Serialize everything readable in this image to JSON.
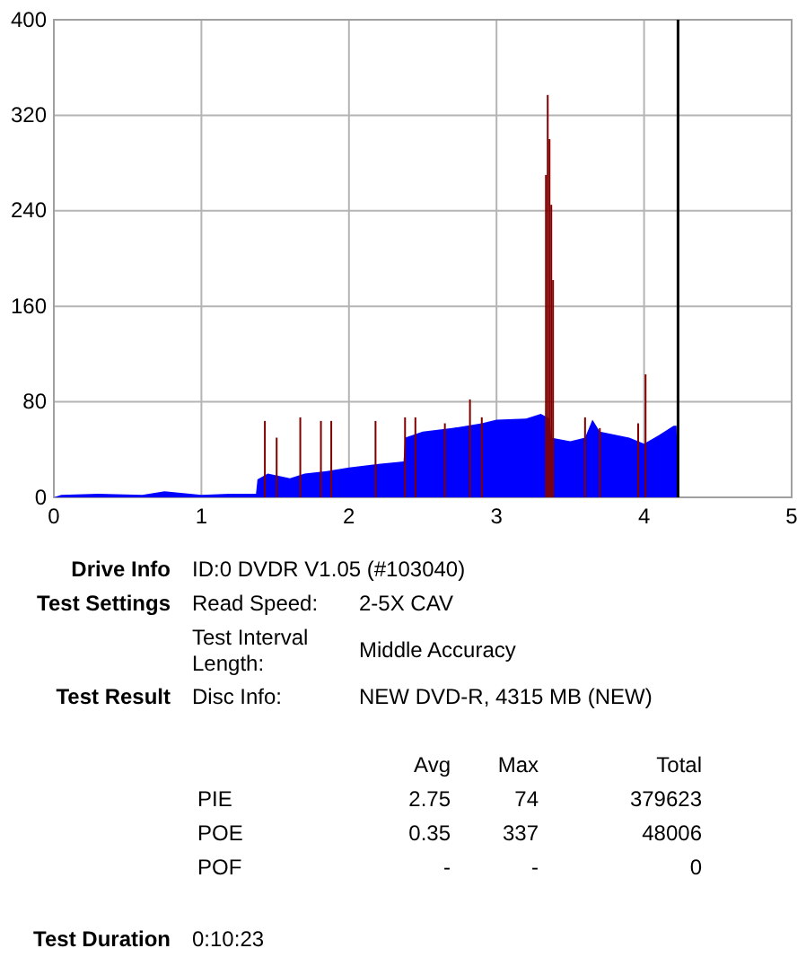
{
  "chart_data": {
    "type": "area",
    "xlim": [
      0,
      5
    ],
    "xticks": [
      0,
      1,
      2,
      3,
      4,
      5
    ],
    "ylim": [
      0,
      400
    ],
    "yticks": [
      0,
      80,
      160,
      240,
      320,
      400
    ],
    "grid": true,
    "series": [
      {
        "color": "#0000ff",
        "x": [
          0,
          0.05,
          0.3,
          0.6,
          0.75,
          1.0,
          1.2,
          1.37,
          1.38,
          1.45,
          1.6,
          1.7,
          1.85,
          2.0,
          2.2,
          2.37,
          2.38,
          2.5,
          2.7,
          2.9,
          3.0,
          3.2,
          3.3,
          3.36,
          3.37,
          3.5,
          3.6,
          3.65,
          3.7,
          3.9,
          4.0,
          4.1,
          4.2,
          4.22,
          4.23
        ],
        "values": [
          0,
          2,
          3,
          2,
          5,
          2,
          3,
          3,
          15,
          20,
          16,
          20,
          22,
          25,
          28,
          30,
          50,
          55,
          58,
          62,
          65,
          66,
          70,
          66,
          50,
          47,
          50,
          65,
          55,
          50,
          45,
          52,
          60,
          60,
          0
        ]
      },
      {
        "type": "bar",
        "color": "#800000",
        "x": [
          1.43,
          1.51,
          1.67,
          1.81,
          1.88,
          2.18,
          2.38,
          2.45,
          2.65,
          2.82,
          2.9,
          3.335,
          3.347,
          3.359,
          3.371,
          3.383,
          3.6,
          3.7,
          3.96,
          4.01
        ],
        "values": [
          64,
          50,
          67,
          64,
          64,
          64,
          67,
          67,
          62,
          82,
          67,
          270,
          337,
          300,
          245,
          182,
          67,
          58,
          62,
          103
        ]
      }
    ],
    "ref_lines": [
      {
        "axis": "x",
        "value": 4.23,
        "color": "#000000"
      }
    ],
    "annotations": [
      "Drive Info",
      "ID:0 DVDR V1.05 (#103040)",
      "Test Settings",
      "Read Speed:",
      "2-5X CAV",
      "Test Interval Length:",
      "Middle Accuracy",
      "Test Result",
      "Disc Info:",
      "NEW DVD-R, 4315 MB (NEW)",
      "Avg",
      "Max",
      "Total",
      "PIE",
      "2.75",
      "74",
      "379623",
      "POE",
      "0.35",
      "337",
      "48006",
      "POF",
      "-",
      "-",
      "0",
      "Test Duration",
      "0:10:23"
    ]
  }
}
